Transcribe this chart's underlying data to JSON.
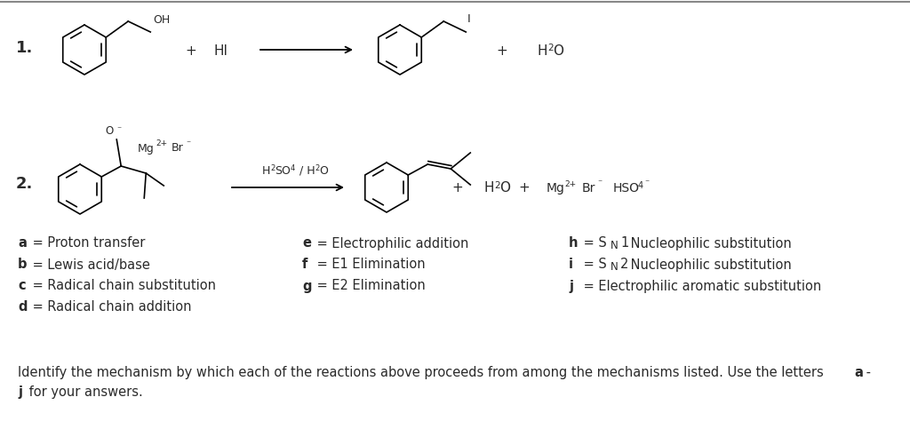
{
  "bg_color": "#ffffff",
  "text_color": "#2a2a2a",
  "border_color": "#555555",
  "reaction1_label": "1.",
  "reaction2_label": "2.",
  "mechanisms": [
    [
      "a",
      "Proton transfer",
      "e",
      "Electrophilic addition",
      "h",
      "S_N1 Nucleophilic substitution"
    ],
    [
      "b",
      "Lewis acid/base",
      "f",
      "E1 Elimination",
      "i",
      "S_N2 Nucleophilic substitution"
    ],
    [
      "c",
      "Radical chain substitution",
      "g",
      "E2 Elimination",
      "j",
      "Electrophilic aromatic substitution"
    ],
    [
      "d",
      "Radical chain addition",
      "",
      "",
      "",
      ""
    ]
  ],
  "footer_line1": "Identify the mechanism by which each of the reactions above proceeds from among the mechanisms listed. Use the letters ",
  "footer_bold_a": "a",
  "footer_middle": " -",
  "footer_line2_bold_j": "j",
  "footer_line2_rest": " for your answers."
}
